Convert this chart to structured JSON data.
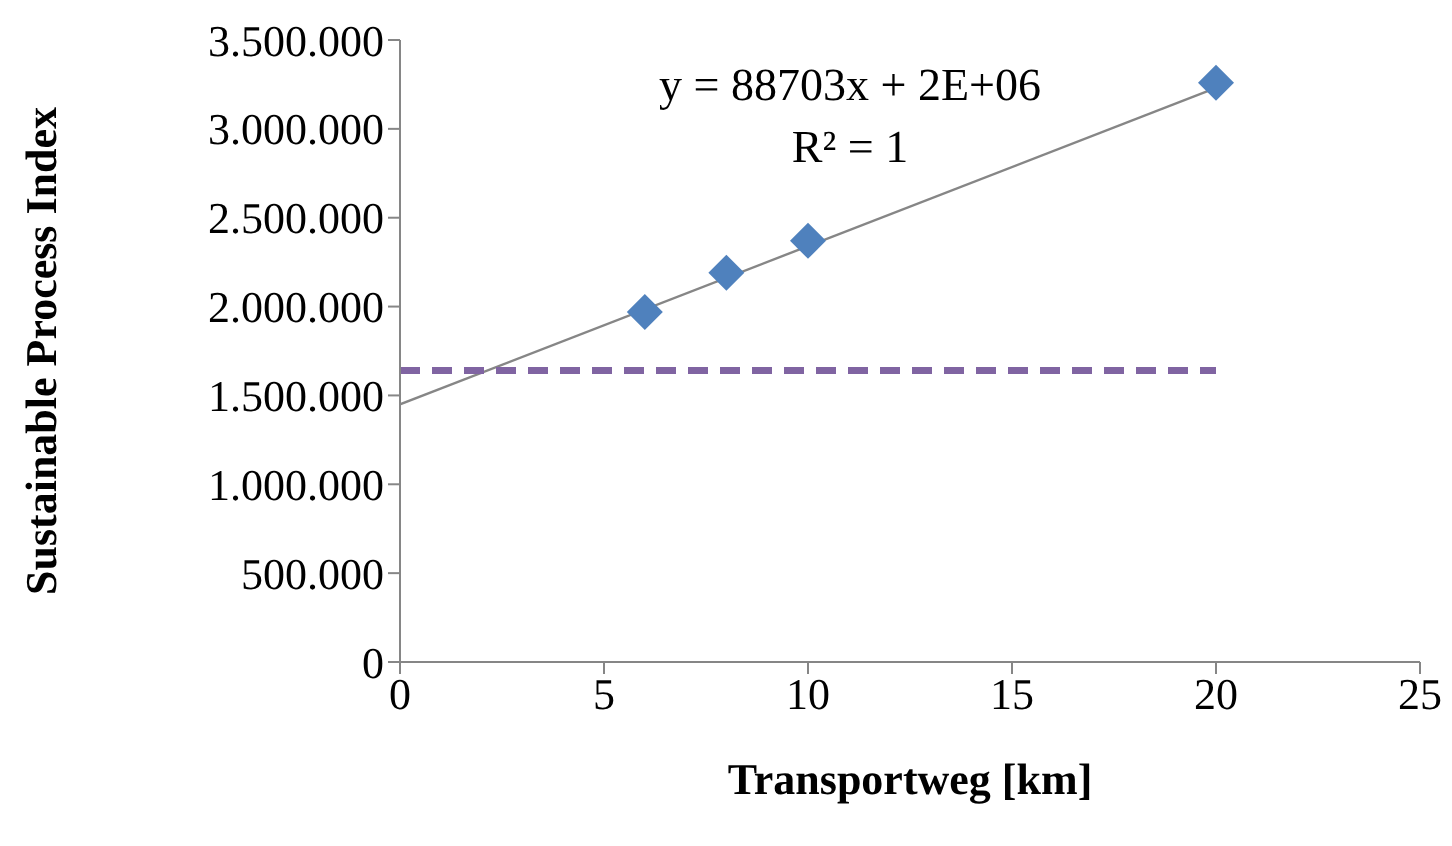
{
  "chart_data": {
    "type": "scatter",
    "xlabel": "Transportweg  [km]",
    "ylabel": "Sustainable  Process Index",
    "xlim": [
      0,
      25
    ],
    "xticks": [
      0,
      5,
      10,
      15,
      20,
      25
    ],
    "ylim": [
      0,
      3500000
    ],
    "yticks": [
      {
        "value": 0,
        "label": "0"
      },
      {
        "value": 500000,
        "label": "500.000"
      },
      {
        "value": 1000000,
        "label": "1.000.000"
      },
      {
        "value": 1500000,
        "label": "1.500.000"
      },
      {
        "value": 2000000,
        "label": "2.000.000"
      },
      {
        "value": 2500000,
        "label": "2.500.000"
      },
      {
        "value": 3000000,
        "label": "3.000.000"
      },
      {
        "value": 3500000,
        "label": "3.500.000"
      }
    ],
    "grid": false,
    "legend": false,
    "series": [
      {
        "color": "#4f81bd",
        "marker": "diamond",
        "x": [
          6,
          8,
          10,
          20
        ],
        "values": [
          1970000,
          2190000,
          2370000,
          3260000
        ]
      },
      {
        "type": "line",
        "color": "#868686",
        "marker": "none",
        "line_style": "solid",
        "x": [
          0,
          20
        ],
        "values": [
          1450000,
          3230000
        ]
      },
      {
        "type": "line",
        "color": "#8064a2",
        "marker": "none",
        "line_style": "dashed",
        "x": [
          0,
          20
        ],
        "values": [
          1640000,
          1640000
        ]
      }
    ],
    "annotations": [
      "y = 88703x + 2E+06",
      "R² = 1"
    ]
  }
}
